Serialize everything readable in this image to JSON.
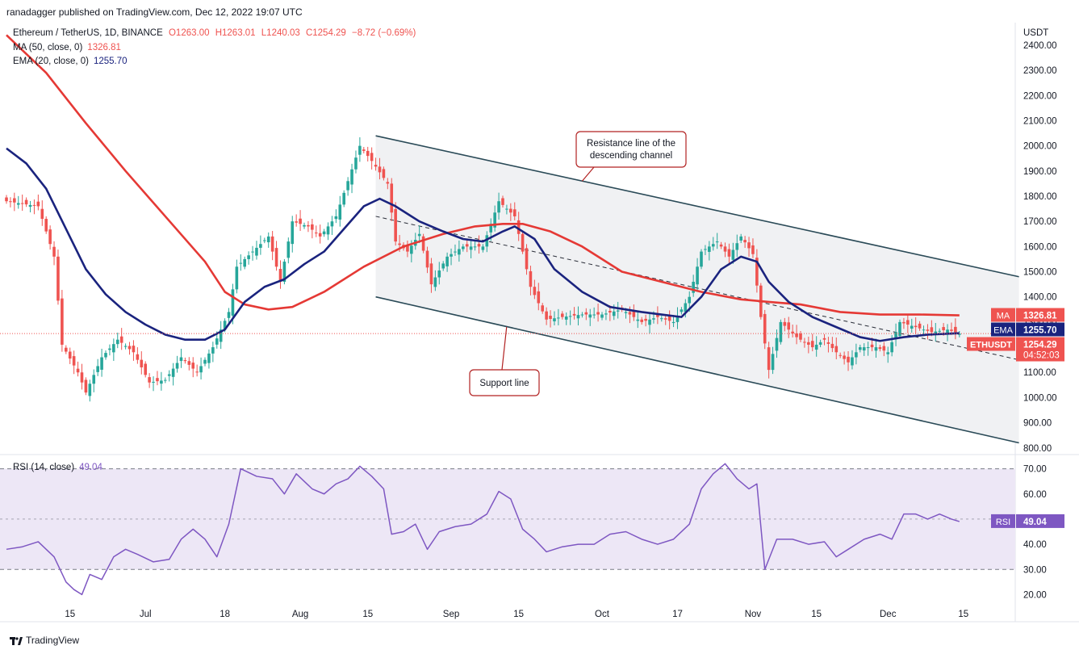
{
  "header": {
    "published": "ranadagger published on TradingView.com, Dec 12, 2022 19:07 UTC"
  },
  "legend": {
    "symbol": "Ethereum / TetherUS, 1D, BINANCE",
    "open": "O1263.00",
    "high": "H1263.01",
    "low": "L1240.03",
    "close": "C1254.29",
    "change": "−8.72 (−0.69%)",
    "ma_label": "MA (50, close, 0)",
    "ma_value": "1326.81",
    "ema_label": "EMA (20, close, 0)",
    "ema_value": "1255.70",
    "rsi_label": "RSI (14, close)",
    "rsi_value": "49.04"
  },
  "footer": {
    "brand": "TradingView"
  },
  "colors": {
    "up": "#26a69a",
    "down": "#ef5350",
    "ma": "#e53935",
    "ema": "#1a237e",
    "rsi": "#7e57c2",
    "rsi_band": "#ede7f6",
    "channel": "#2a4a57",
    "channel_fill": "#f0f1f3",
    "callout": "#b22222"
  },
  "chart_data": [
    {
      "type": "candlestick",
      "title": "Ethereum / TetherUS, 1D, BINANCE",
      "y_unit": "USDT",
      "ylim": [
        780,
        2480
      ],
      "yticks": [
        "2400.00",
        "2300.00",
        "2200.00",
        "2100.00",
        "2000.00",
        "1900.00",
        "1800.00",
        "1700.00",
        "1600.00",
        "1500.00",
        "1400.00",
        "1300.00",
        "1200.00",
        "1100.00",
        "1000.00",
        "900.00",
        "800.00"
      ],
      "x_ticks": [
        "15",
        "Jul",
        "18",
        "Aug",
        "15",
        "Sep",
        "15",
        "Oct",
        "17",
        "Nov",
        "15",
        "Dec",
        "15"
      ],
      "close_path": [
        {
          "d": 0,
          "v": 1780
        },
        {
          "d": 8,
          "v": 1760
        },
        {
          "d": 12,
          "v": 1560
        },
        {
          "d": 14,
          "v": 1210
        },
        {
          "d": 18,
          "v": 1100
        },
        {
          "d": 20,
          "v": 1020
        },
        {
          "d": 24,
          "v": 1160
        },
        {
          "d": 28,
          "v": 1230
        },
        {
          "d": 32,
          "v": 1180
        },
        {
          "d": 36,
          "v": 1060
        },
        {
          "d": 40,
          "v": 1070
        },
        {
          "d": 44,
          "v": 1160
        },
        {
          "d": 48,
          "v": 1100
        },
        {
          "d": 52,
          "v": 1200
        },
        {
          "d": 56,
          "v": 1340
        },
        {
          "d": 58,
          "v": 1520
        },
        {
          "d": 62,
          "v": 1580
        },
        {
          "d": 66,
          "v": 1640
        },
        {
          "d": 69,
          "v": 1460
        },
        {
          "d": 72,
          "v": 1700
        },
        {
          "d": 76,
          "v": 1680
        },
        {
          "d": 79,
          "v": 1640
        },
        {
          "d": 83,
          "v": 1720
        },
        {
          "d": 86,
          "v": 1860
        },
        {
          "d": 89,
          "v": 2000
        },
        {
          "d": 92,
          "v": 1940
        },
        {
          "d": 96,
          "v": 1850
        },
        {
          "d": 98,
          "v": 1620
        },
        {
          "d": 101,
          "v": 1580
        },
        {
          "d": 104,
          "v": 1650
        },
        {
          "d": 107,
          "v": 1450
        },
        {
          "d": 111,
          "v": 1560
        },
        {
          "d": 115,
          "v": 1600
        },
        {
          "d": 120,
          "v": 1600
        },
        {
          "d": 124,
          "v": 1780
        },
        {
          "d": 128,
          "v": 1720
        },
        {
          "d": 132,
          "v": 1440
        },
        {
          "d": 136,
          "v": 1310
        },
        {
          "d": 140,
          "v": 1320
        },
        {
          "d": 145,
          "v": 1330
        },
        {
          "d": 150,
          "v": 1330
        },
        {
          "d": 155,
          "v": 1350
        },
        {
          "d": 160,
          "v": 1300
        },
        {
          "d": 164,
          "v": 1320
        },
        {
          "d": 168,
          "v": 1300
        },
        {
          "d": 172,
          "v": 1400
        },
        {
          "d": 175,
          "v": 1580
        },
        {
          "d": 179,
          "v": 1620
        },
        {
          "d": 182,
          "v": 1560
        },
        {
          "d": 185,
          "v": 1640
        },
        {
          "d": 188,
          "v": 1570
        },
        {
          "d": 190,
          "v": 1320
        },
        {
          "d": 192,
          "v": 1110
        },
        {
          "d": 195,
          "v": 1300
        },
        {
          "d": 199,
          "v": 1240
        },
        {
          "d": 203,
          "v": 1200
        },
        {
          "d": 206,
          "v": 1230
        },
        {
          "d": 209,
          "v": 1180
        },
        {
          "d": 212,
          "v": 1140
        },
        {
          "d": 215,
          "v": 1200
        },
        {
          "d": 219,
          "v": 1200
        },
        {
          "d": 222,
          "v": 1180
        },
        {
          "d": 225,
          "v": 1300
        },
        {
          "d": 229,
          "v": 1280
        },
        {
          "d": 233,
          "v": 1260
        },
        {
          "d": 237,
          "v": 1270
        },
        {
          "d": 240,
          "v": 1254.29
        }
      ],
      "ma_path": [
        {
          "d": 0,
          "v": 2440
        },
        {
          "d": 10,
          "v": 2290
        },
        {
          "d": 20,
          "v": 2090
        },
        {
          "d": 30,
          "v": 1900
        },
        {
          "d": 40,
          "v": 1720
        },
        {
          "d": 50,
          "v": 1540
        },
        {
          "d": 55,
          "v": 1420
        },
        {
          "d": 60,
          "v": 1370
        },
        {
          "d": 66,
          "v": 1350
        },
        {
          "d": 72,
          "v": 1360
        },
        {
          "d": 80,
          "v": 1420
        },
        {
          "d": 90,
          "v": 1520
        },
        {
          "d": 100,
          "v": 1600
        },
        {
          "d": 110,
          "v": 1650
        },
        {
          "d": 118,
          "v": 1680
        },
        {
          "d": 125,
          "v": 1690
        },
        {
          "d": 130,
          "v": 1690
        },
        {
          "d": 137,
          "v": 1660
        },
        {
          "d": 145,
          "v": 1600
        },
        {
          "d": 155,
          "v": 1500
        },
        {
          "d": 165,
          "v": 1460
        },
        {
          "d": 175,
          "v": 1420
        },
        {
          "d": 185,
          "v": 1390
        },
        {
          "d": 192,
          "v": 1380
        },
        {
          "d": 200,
          "v": 1370
        },
        {
          "d": 210,
          "v": 1340
        },
        {
          "d": 220,
          "v": 1330
        },
        {
          "d": 230,
          "v": 1330
        },
        {
          "d": 240,
          "v": 1326.81
        }
      ],
      "ema_path": [
        {
          "d": 0,
          "v": 1990
        },
        {
          "d": 5,
          "v": 1930
        },
        {
          "d": 10,
          "v": 1830
        },
        {
          "d": 15,
          "v": 1670
        },
        {
          "d": 20,
          "v": 1510
        },
        {
          "d": 25,
          "v": 1410
        },
        {
          "d": 30,
          "v": 1340
        },
        {
          "d": 35,
          "v": 1290
        },
        {
          "d": 40,
          "v": 1250
        },
        {
          "d": 45,
          "v": 1230
        },
        {
          "d": 50,
          "v": 1230
        },
        {
          "d": 55,
          "v": 1270
        },
        {
          "d": 60,
          "v": 1380
        },
        {
          "d": 65,
          "v": 1440
        },
        {
          "d": 70,
          "v": 1470
        },
        {
          "d": 75,
          "v": 1530
        },
        {
          "d": 80,
          "v": 1580
        },
        {
          "d": 85,
          "v": 1670
        },
        {
          "d": 90,
          "v": 1760
        },
        {
          "d": 94,
          "v": 1790
        },
        {
          "d": 98,
          "v": 1760
        },
        {
          "d": 104,
          "v": 1700
        },
        {
          "d": 110,
          "v": 1660
        },
        {
          "d": 115,
          "v": 1630
        },
        {
          "d": 120,
          "v": 1620
        },
        {
          "d": 125,
          "v": 1660
        },
        {
          "d": 128,
          "v": 1680
        },
        {
          "d": 133,
          "v": 1630
        },
        {
          "d": 138,
          "v": 1510
        },
        {
          "d": 145,
          "v": 1420
        },
        {
          "d": 152,
          "v": 1360
        },
        {
          "d": 160,
          "v": 1340
        },
        {
          "d": 165,
          "v": 1330
        },
        {
          "d": 170,
          "v": 1320
        },
        {
          "d": 175,
          "v": 1400
        },
        {
          "d": 180,
          "v": 1510
        },
        {
          "d": 185,
          "v": 1560
        },
        {
          "d": 189,
          "v": 1540
        },
        {
          "d": 192,
          "v": 1460
        },
        {
          "d": 197,
          "v": 1380
        },
        {
          "d": 203,
          "v": 1320
        },
        {
          "d": 209,
          "v": 1280
        },
        {
          "d": 215,
          "v": 1240
        },
        {
          "d": 220,
          "v": 1225
        },
        {
          "d": 226,
          "v": 1240
        },
        {
          "d": 232,
          "v": 1250
        },
        {
          "d": 240,
          "v": 1255.7
        }
      ],
      "channel": {
        "resistance": [
          {
            "d": 93,
            "v": 2040
          },
          {
            "d": 255,
            "v": 1480
          }
        ],
        "support": [
          {
            "d": 93,
            "v": 1400
          },
          {
            "d": 255,
            "v": 820
          }
        ],
        "midline": [
          {
            "d": 93,
            "v": 1720
          },
          {
            "d": 255,
            "v": 1150
          }
        ]
      },
      "annotations": [
        {
          "text": "Resistance line of the descending channel",
          "target": {
            "d": 145,
            "v": 1860
          }
        },
        {
          "text": "Support line",
          "target": {
            "d": 128,
            "v": 1300
          }
        }
      ],
      "price_labels": [
        {
          "name": "MA",
          "value": "1326.81",
          "color": "#ef5350"
        },
        {
          "name": "EMA",
          "value": "1255.70",
          "color": "#1a237e"
        },
        {
          "name": "ETHUSDT",
          "value": "1254.29",
          "sub": "04:52:03",
          "color": "#ef5350"
        }
      ]
    },
    {
      "type": "line",
      "title": "RSI (14, close)",
      "ylim": [
        15,
        75
      ],
      "yticks": [
        "70.00",
        "60.00",
        "50.00",
        "40.00",
        "30.00",
        "20.00"
      ],
      "bands": [
        30,
        70
      ],
      "series": [
        {
          "name": "RSI",
          "values": [
            {
              "d": 0,
              "v": 38
            },
            {
              "d": 4,
              "v": 39
            },
            {
              "d": 8,
              "v": 41
            },
            {
              "d": 12,
              "v": 35
            },
            {
              "d": 15,
              "v": 25
            },
            {
              "d": 17,
              "v": 22
            },
            {
              "d": 19,
              "v": 20
            },
            {
              "d": 21,
              "v": 28
            },
            {
              "d": 24,
              "v": 26
            },
            {
              "d": 27,
              "v": 35
            },
            {
              "d": 30,
              "v": 38
            },
            {
              "d": 33,
              "v": 36
            },
            {
              "d": 37,
              "v": 33
            },
            {
              "d": 41,
              "v": 34
            },
            {
              "d": 44,
              "v": 42
            },
            {
              "d": 47,
              "v": 46
            },
            {
              "d": 50,
              "v": 42
            },
            {
              "d": 53,
              "v": 35
            },
            {
              "d": 56,
              "v": 48
            },
            {
              "d": 59,
              "v": 70
            },
            {
              "d": 63,
              "v": 67
            },
            {
              "d": 67,
              "v": 66
            },
            {
              "d": 70,
              "v": 60
            },
            {
              "d": 73,
              "v": 68
            },
            {
              "d": 77,
              "v": 62
            },
            {
              "d": 80,
              "v": 60
            },
            {
              "d": 83,
              "v": 64
            },
            {
              "d": 86,
              "v": 66
            },
            {
              "d": 89,
              "v": 71
            },
            {
              "d": 92,
              "v": 67
            },
            {
              "d": 95,
              "v": 62
            },
            {
              "d": 97,
              "v": 44
            },
            {
              "d": 100,
              "v": 45
            },
            {
              "d": 103,
              "v": 48
            },
            {
              "d": 106,
              "v": 38
            },
            {
              "d": 109,
              "v": 45
            },
            {
              "d": 113,
              "v": 47
            },
            {
              "d": 117,
              "v": 48
            },
            {
              "d": 121,
              "v": 52
            },
            {
              "d": 124,
              "v": 61
            },
            {
              "d": 127,
              "v": 58
            },
            {
              "d": 130,
              "v": 46
            },
            {
              "d": 133,
              "v": 42
            },
            {
              "d": 136,
              "v": 37
            },
            {
              "d": 140,
              "v": 39
            },
            {
              "d": 144,
              "v": 40
            },
            {
              "d": 148,
              "v": 40
            },
            {
              "d": 152,
              "v": 44
            },
            {
              "d": 156,
              "v": 45
            },
            {
              "d": 160,
              "v": 42
            },
            {
              "d": 164,
              "v": 40
            },
            {
              "d": 168,
              "v": 42
            },
            {
              "d": 172,
              "v": 48
            },
            {
              "d": 175,
              "v": 62
            },
            {
              "d": 178,
              "v": 68
            },
            {
              "d": 181,
              "v": 72
            },
            {
              "d": 184,
              "v": 66
            },
            {
              "d": 187,
              "v": 62
            },
            {
              "d": 189,
              "v": 64
            },
            {
              "d": 191,
              "v": 30
            },
            {
              "d": 194,
              "v": 42
            },
            {
              "d": 198,
              "v": 42
            },
            {
              "d": 202,
              "v": 40
            },
            {
              "d": 206,
              "v": 41
            },
            {
              "d": 209,
              "v": 35
            },
            {
              "d": 212,
              "v": 38
            },
            {
              "d": 216,
              "v": 42
            },
            {
              "d": 220,
              "v": 44
            },
            {
              "d": 223,
              "v": 42
            },
            {
              "d": 226,
              "v": 52
            },
            {
              "d": 229,
              "v": 52
            },
            {
              "d": 232,
              "v": 50
            },
            {
              "d": 235,
              "v": 52
            },
            {
              "d": 238,
              "v": 50
            },
            {
              "d": 240,
              "v": 49.04
            }
          ]
        }
      ],
      "price_labels": [
        {
          "name": "RSI",
          "value": "49.04",
          "color": "#7e57c2"
        }
      ]
    }
  ]
}
